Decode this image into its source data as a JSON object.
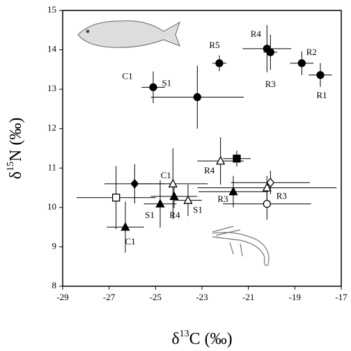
{
  "chart_data": {
    "type": "scatter",
    "xlabel": {
      "pre": "δ",
      "sup": "13",
      "post": "C (‰)"
    },
    "ylabel": {
      "pre": "δ",
      "sup": "15",
      "post": "N (‰)"
    },
    "xlim": [
      -29,
      -17
    ],
    "xticks": [
      -29,
      -27,
      -25,
      -23,
      -21,
      -19,
      -17
    ],
    "ylim": [
      8,
      15
    ],
    "yticks": [
      8,
      9,
      10,
      11,
      12,
      13,
      14,
      15
    ],
    "series": [
      {
        "marker": "circle",
        "filled": true,
        "color": "#000",
        "x": [
          -25.1,
          -23.2,
          -22.25,
          -20.2,
          -20.05,
          -18.7,
          -17.9
        ],
        "values": [
          13.05,
          12.8,
          13.66,
          14.03,
          13.94,
          13.66,
          13.36
        ],
        "xerr": [
          0.5,
          2.0,
          0.3,
          1.05,
          0.3,
          0.5,
          0.5
        ],
        "yerr": [
          0.4,
          0.8,
          0.2,
          0.6,
          0.45,
          0.3,
          0.3
        ],
        "labels": [
          "C1",
          "S1",
          "R5",
          "R4",
          "R3",
          "R2",
          "R1"
        ]
      },
      {
        "marker": "triangle",
        "filled": true,
        "color": "#000",
        "x": [
          -26.3,
          -24.8,
          -24.2,
          -21.65
        ],
        "values": [
          9.5,
          10.09,
          10.28,
          10.4
        ],
        "xerr": [
          0.8,
          0.7,
          1.0,
          1.5
        ],
        "yerr": [
          0.65,
          0.6,
          0.3,
          0.4
        ],
        "labels": [
          "C1",
          "S1",
          "R4",
          "R3"
        ]
      },
      {
        "marker": "triangle",
        "filled": false,
        "color": "#000",
        "x": [
          -24.25,
          -23.6,
          -22.2,
          -20.2
        ],
        "values": [
          10.6,
          10.18,
          11.18,
          10.5
        ],
        "xerr": [
          1.5,
          0.6,
          1.0,
          3.0
        ],
        "yerr": [
          0.9,
          0.4,
          0.6,
          0.3
        ],
        "labels": [
          "C1",
          "S1",
          "R4",
          "R3"
        ]
      },
      {
        "marker": "square",
        "filled": true,
        "color": "#000",
        "x": [
          -21.5
        ],
        "values": [
          11.24
        ],
        "xerr": [
          0.6
        ],
        "yerr": [
          0.2
        ]
      },
      {
        "marker": "square",
        "filled": false,
        "color": "#000",
        "x": [
          -26.7
        ],
        "values": [
          10.25
        ],
        "xerr": [
          1.7
        ],
        "yerr": [
          0.8
        ]
      },
      {
        "marker": "diamond",
        "filled": true,
        "color": "#000",
        "x": [
          -25.9
        ],
        "values": [
          10.6
        ],
        "xerr": [
          1.3
        ],
        "yerr": [
          0.5
        ]
      },
      {
        "marker": "diamond",
        "filled": false,
        "color": "#000",
        "x": [
          -20.05
        ],
        "values": [
          10.63
        ],
        "xerr": [
          1.7
        ],
        "yerr": [
          0.3
        ]
      },
      {
        "marker": "circle",
        "filled": false,
        "color": "#000",
        "x": [
          -20.2
        ],
        "values": [
          10.09
        ],
        "xerr": [
          1.9
        ],
        "yerr": [
          0.4
        ]
      }
    ]
  }
}
